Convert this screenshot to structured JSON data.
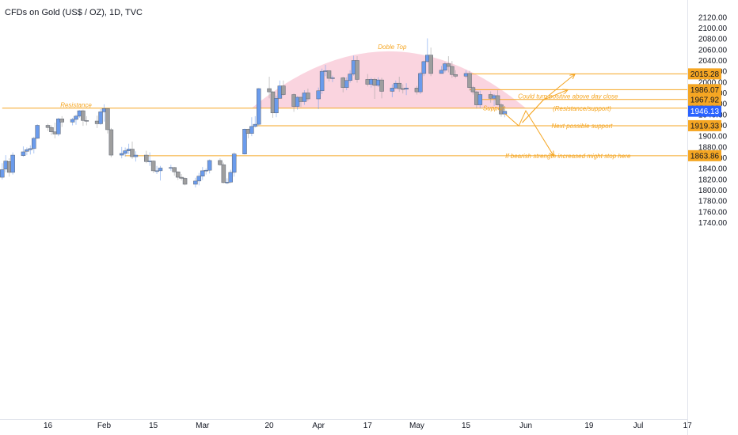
{
  "chart_data": {
    "type": "candlestick",
    "title": "CFDs on Gold (US$ / OZ), 1D, TVC",
    "y_axis": {
      "min": 1740,
      "max": 2120,
      "ticks": [
        1740,
        1760,
        1780,
        1800,
        1820,
        1840,
        1860,
        1880,
        1900,
        1920,
        1940,
        1960,
        1980,
        2000,
        2020,
        2040,
        2060,
        2080,
        2100,
        2120
      ],
      "tick_labels": [
        "1740.00",
        "1760.00",
        "1780.00",
        "1800.00",
        "1820.00",
        "1840.00",
        "1860.00",
        "1880.00",
        "1900.00",
        "1920.00",
        "1940.00",
        "1960.00",
        "1980.00",
        "2000.00",
        "2020.00",
        "2040.00",
        "2060.00",
        "2080.00",
        "2100.00",
        "2120.00"
      ]
    },
    "x_axis": {
      "labels": [
        {
          "label": "16",
          "date": "2023-01-16"
        },
        {
          "label": "Feb",
          "date": "2023-02-01"
        },
        {
          "label": "15",
          "date": "2023-02-15"
        },
        {
          "label": "Mar",
          "date": "2023-03-01"
        },
        {
          "label": "20",
          "date": "2023-03-20"
        },
        {
          "label": "Apr",
          "date": "2023-04-03"
        },
        {
          "label": "17",
          "date": "2023-04-17"
        },
        {
          "label": "May",
          "date": "2023-05-01"
        },
        {
          "label": "15",
          "date": "2023-05-15"
        },
        {
          "label": "Jun",
          "date": "2023-06-01"
        },
        {
          "label": "19",
          "date": "2023-06-19"
        },
        {
          "label": "Jul",
          "date": "2023-07-03"
        },
        {
          "label": "17",
          "date": "2023-07-17"
        }
      ]
    },
    "candles": [
      {
        "date": "2023-01-03",
        "o": 1824,
        "h": 1850,
        "l": 1820,
        "c": 1838
      },
      {
        "date": "2023-01-04",
        "o": 1839,
        "h": 1865,
        "l": 1833,
        "c": 1854
      },
      {
        "date": "2023-01-05",
        "o": 1853,
        "h": 1859,
        "l": 1825,
        "c": 1833
      },
      {
        "date": "2023-01-06",
        "o": 1833,
        "h": 1870,
        "l": 1829,
        "c": 1865
      },
      {
        "date": "2023-01-09",
        "o": 1864,
        "h": 1881,
        "l": 1862,
        "c": 1871
      },
      {
        "date": "2023-01-10",
        "o": 1872,
        "h": 1879,
        "l": 1865,
        "c": 1875
      },
      {
        "date": "2023-01-11",
        "o": 1875,
        "h": 1883,
        "l": 1866,
        "c": 1877
      },
      {
        "date": "2023-01-12",
        "o": 1877,
        "h": 1899,
        "l": 1868,
        "c": 1896
      },
      {
        "date": "2023-01-13",
        "o": 1896,
        "h": 1922,
        "l": 1895,
        "c": 1920
      },
      {
        "date": "2023-01-16",
        "o": 1920,
        "h": 1923,
        "l": 1910,
        "c": 1916
      },
      {
        "date": "2023-01-17",
        "o": 1916,
        "h": 1920,
        "l": 1902,
        "c": 1908
      },
      {
        "date": "2023-01-18",
        "o": 1908,
        "h": 1925,
        "l": 1896,
        "c": 1904
      },
      {
        "date": "2023-01-19",
        "o": 1904,
        "h": 1934,
        "l": 1900,
        "c": 1932
      },
      {
        "date": "2023-01-20",
        "o": 1932,
        "h": 1937,
        "l": 1917,
        "c": 1926
      },
      {
        "date": "2023-01-23",
        "o": 1926,
        "h": 1934,
        "l": 1920,
        "c": 1931
      },
      {
        "date": "2023-01-24",
        "o": 1931,
        "h": 1940,
        "l": 1921,
        "c": 1937
      },
      {
        "date": "2023-01-25",
        "o": 1937,
        "h": 1948,
        "l": 1934,
        "c": 1947
      },
      {
        "date": "2023-01-26",
        "o": 1947,
        "h": 1949,
        "l": 1919,
        "c": 1929
      },
      {
        "date": "2023-01-27",
        "o": 1929,
        "h": 1937,
        "l": 1920,
        "c": 1928
      },
      {
        "date": "2023-01-30",
        "o": 1928,
        "h": 1938,
        "l": 1915,
        "c": 1923
      },
      {
        "date": "2023-01-31",
        "o": 1923,
        "h": 1950,
        "l": 1921,
        "c": 1945
      },
      {
        "date": "2023-02-01",
        "o": 1945,
        "h": 1959,
        "l": 1927,
        "c": 1951
      },
      {
        "date": "2023-02-02",
        "o": 1951,
        "h": 1951,
        "l": 1905,
        "c": 1912
      },
      {
        "date": "2023-02-03",
        "o": 1912,
        "h": 1915,
        "l": 1861,
        "c": 1865
      },
      {
        "date": "2023-02-06",
        "o": 1865,
        "h": 1880,
        "l": 1859,
        "c": 1868
      },
      {
        "date": "2023-02-07",
        "o": 1868,
        "h": 1879,
        "l": 1862,
        "c": 1873
      },
      {
        "date": "2023-02-08",
        "o": 1873,
        "h": 1886,
        "l": 1867,
        "c": 1876
      },
      {
        "date": "2023-02-09",
        "o": 1876,
        "h": 1890,
        "l": 1858,
        "c": 1862
      },
      {
        "date": "2023-02-10",
        "o": 1862,
        "h": 1872,
        "l": 1853,
        "c": 1865
      },
      {
        "date": "2023-02-13",
        "o": 1865,
        "h": 1873,
        "l": 1850,
        "c": 1853
      },
      {
        "date": "2023-02-14",
        "o": 1853,
        "h": 1870,
        "l": 1845,
        "c": 1854
      },
      {
        "date": "2023-02-15",
        "o": 1854,
        "h": 1855,
        "l": 1832,
        "c": 1836
      },
      {
        "date": "2023-02-16",
        "o": 1836,
        "h": 1845,
        "l": 1830,
        "c": 1836
      },
      {
        "date": "2023-02-17",
        "o": 1836,
        "h": 1845,
        "l": 1818,
        "c": 1841
      },
      {
        "date": "2023-02-20",
        "o": 1841,
        "h": 1847,
        "l": 1836,
        "c": 1842
      },
      {
        "date": "2023-02-21",
        "o": 1842,
        "h": 1843,
        "l": 1827,
        "c": 1834
      },
      {
        "date": "2023-02-22",
        "o": 1834,
        "h": 1835,
        "l": 1819,
        "c": 1824
      },
      {
        "date": "2023-02-23",
        "o": 1824,
        "h": 1830,
        "l": 1818,
        "c": 1822
      },
      {
        "date": "2023-02-24",
        "o": 1822,
        "h": 1824,
        "l": 1809,
        "c": 1811
      },
      {
        "date": "2023-02-27",
        "o": 1811,
        "h": 1823,
        "l": 1805,
        "c": 1817
      },
      {
        "date": "2023-02-28",
        "o": 1817,
        "h": 1832,
        "l": 1809,
        "c": 1826
      },
      {
        "date": "2023-03-01",
        "o": 1826,
        "h": 1843,
        "l": 1819,
        "c": 1836
      },
      {
        "date": "2023-03-02",
        "o": 1836,
        "h": 1840,
        "l": 1829,
        "c": 1837
      },
      {
        "date": "2023-03-03",
        "o": 1837,
        "h": 1857,
        "l": 1831,
        "c": 1855
      },
      {
        "date": "2023-03-06",
        "o": 1855,
        "h": 1859,
        "l": 1845,
        "c": 1847
      },
      {
        "date": "2023-03-07",
        "o": 1847,
        "h": 1851,
        "l": 1813,
        "c": 1814
      },
      {
        "date": "2023-03-08",
        "o": 1814,
        "h": 1822,
        "l": 1811,
        "c": 1815
      },
      {
        "date": "2023-03-09",
        "o": 1815,
        "h": 1838,
        "l": 1813,
        "c": 1833
      },
      {
        "date": "2023-03-10",
        "o": 1833,
        "h": 1870,
        "l": 1825,
        "c": 1867
      },
      {
        "date": "2023-03-13",
        "o": 1867,
        "h": 1914,
        "l": 1866,
        "c": 1913
      },
      {
        "date": "2023-03-14",
        "o": 1913,
        "h": 1914,
        "l": 1896,
        "c": 1905
      },
      {
        "date": "2023-03-15",
        "o": 1905,
        "h": 1935,
        "l": 1900,
        "c": 1918
      },
      {
        "date": "2023-03-16",
        "o": 1918,
        "h": 1937,
        "l": 1916,
        "c": 1922
      },
      {
        "date": "2023-03-17",
        "o": 1922,
        "h": 1989,
        "l": 1919,
        "c": 1988
      },
      {
        "date": "2023-03-20",
        "o": 1988,
        "h": 2010,
        "l": 1970,
        "c": 1982
      },
      {
        "date": "2023-03-21",
        "o": 1982,
        "h": 1984,
        "l": 1934,
        "c": 1943
      },
      {
        "date": "2023-03-22",
        "o": 1943,
        "h": 1975,
        "l": 1935,
        "c": 1970
      },
      {
        "date": "2023-03-23",
        "o": 1970,
        "h": 2003,
        "l": 1969,
        "c": 1993
      },
      {
        "date": "2023-03-24",
        "o": 1993,
        "h": 2003,
        "l": 1975,
        "c": 1977
      },
      {
        "date": "2023-03-27",
        "o": 1977,
        "h": 1979,
        "l": 1945,
        "c": 1955
      },
      {
        "date": "2023-03-28",
        "o": 1955,
        "h": 1974,
        "l": 1949,
        "c": 1972
      },
      {
        "date": "2023-03-29",
        "o": 1972,
        "h": 1973,
        "l": 1954,
        "c": 1964
      },
      {
        "date": "2023-03-30",
        "o": 1964,
        "h": 1985,
        "l": 1958,
        "c": 1980
      },
      {
        "date": "2023-03-31",
        "o": 1980,
        "h": 1988,
        "l": 1965,
        "c": 1969
      },
      {
        "date": "2023-04-03",
        "o": 1969,
        "h": 1990,
        "l": 1950,
        "c": 1984
      },
      {
        "date": "2023-04-04",
        "o": 1984,
        "h": 2025,
        "l": 1978,
        "c": 2020
      },
      {
        "date": "2023-04-05",
        "o": 2020,
        "h": 2032,
        "l": 2011,
        "c": 2021
      },
      {
        "date": "2023-04-06",
        "o": 2021,
        "h": 2022,
        "l": 2001,
        "c": 2007
      },
      {
        "date": "2023-04-07",
        "o": 2007,
        "h": 2012,
        "l": 2000,
        "c": 2008
      },
      {
        "date": "2023-04-10",
        "o": 2008,
        "h": 2010,
        "l": 1981,
        "c": 1990
      },
      {
        "date": "2023-04-11",
        "o": 1990,
        "h": 2009,
        "l": 1985,
        "c": 2003
      },
      {
        "date": "2023-04-12",
        "o": 2003,
        "h": 2022,
        "l": 1999,
        "c": 2015
      },
      {
        "date": "2023-04-13",
        "o": 2015,
        "h": 2049,
        "l": 2012,
        "c": 2040
      },
      {
        "date": "2023-04-14",
        "o": 2040,
        "h": 2048,
        "l": 1999,
        "c": 2005
      },
      {
        "date": "2023-04-17",
        "o": 2005,
        "h": 2015,
        "l": 1992,
        "c": 1996
      },
      {
        "date": "2023-04-18",
        "o": 1996,
        "h": 2008,
        "l": 1990,
        "c": 2005
      },
      {
        "date": "2023-04-19",
        "o": 2005,
        "h": 2008,
        "l": 1969,
        "c": 1994
      },
      {
        "date": "2023-04-20",
        "o": 1994,
        "h": 2009,
        "l": 1991,
        "c": 2004
      },
      {
        "date": "2023-04-21",
        "o": 2004,
        "h": 2008,
        "l": 1970,
        "c": 1983
      },
      {
        "date": "2023-04-24",
        "o": 1983,
        "h": 1996,
        "l": 1972,
        "c": 1989
      },
      {
        "date": "2023-04-25",
        "o": 1989,
        "h": 2003,
        "l": 1987,
        "c": 1998
      },
      {
        "date": "2023-04-26",
        "o": 1998,
        "h": 2010,
        "l": 1982,
        "c": 1988
      },
      {
        "date": "2023-04-27",
        "o": 1988,
        "h": 1996,
        "l": 1979,
        "c": 1987
      },
      {
        "date": "2023-04-28",
        "o": 1987,
        "h": 1998,
        "l": 1976,
        "c": 1989
      },
      {
        "date": "2023-05-01",
        "o": 1989,
        "h": 1993,
        "l": 1977,
        "c": 1982
      },
      {
        "date": "2023-05-02",
        "o": 1982,
        "h": 2019,
        "l": 1978,
        "c": 2016
      },
      {
        "date": "2023-05-03",
        "o": 2016,
        "h": 2040,
        "l": 2011,
        "c": 2038
      },
      {
        "date": "2023-05-04",
        "o": 2038,
        "h": 2081,
        "l": 2036,
        "c": 2050
      },
      {
        "date": "2023-05-05",
        "o": 2050,
        "h": 2064,
        "l": 2011,
        "c": 2016
      },
      {
        "date": "2023-05-08",
        "o": 2016,
        "h": 2030,
        "l": 2016,
        "c": 2022
      },
      {
        "date": "2023-05-09",
        "o": 2022,
        "h": 2037,
        "l": 2018,
        "c": 2034
      },
      {
        "date": "2023-05-10",
        "o": 2034,
        "h": 2048,
        "l": 2018,
        "c": 2029
      },
      {
        "date": "2023-05-11",
        "o": 2029,
        "h": 2039,
        "l": 2008,
        "c": 2014
      },
      {
        "date": "2023-05-12",
        "o": 2014,
        "h": 2022,
        "l": 2007,
        "c": 2011
      },
      {
        "date": "2023-05-15",
        "o": 2011,
        "h": 2022,
        "l": 2007,
        "c": 2016
      },
      {
        "date": "2023-05-16",
        "o": 2016,
        "h": 2021,
        "l": 1984,
        "c": 1990
      },
      {
        "date": "2023-05-17",
        "o": 1990,
        "h": 1993,
        "l": 1977,
        "c": 1982
      },
      {
        "date": "2023-05-18",
        "o": 1982,
        "h": 1984,
        "l": 1951,
        "c": 1958
      },
      {
        "date": "2023-05-19",
        "o": 1958,
        "h": 1984,
        "l": 1952,
        "c": 1977
      },
      {
        "date": "2023-05-22",
        "o": 1977,
        "h": 1983,
        "l": 1962,
        "c": 1970
      },
      {
        "date": "2023-05-23",
        "o": 1970,
        "h": 1978,
        "l": 1956,
        "c": 1975
      },
      {
        "date": "2023-05-24",
        "o": 1975,
        "h": 1985,
        "l": 1957,
        "c": 1958
      },
      {
        "date": "2023-05-25",
        "o": 1958,
        "h": 1961,
        "l": 1936,
        "c": 1941
      },
      {
        "date": "2023-05-26",
        "o": 1941,
        "h": 1956,
        "l": 1935,
        "c": 1946
      }
    ],
    "levels": [
      {
        "value": 2015.28,
        "label": "2015.28",
        "x_from": "2023-05-15"
      },
      {
        "value": 1986.07,
        "label": "1986.07",
        "x_from": "2023-05-16"
      },
      {
        "value": 1967.92,
        "label": "1967.92",
        "x_from": "2023-05-19"
      },
      {
        "value": 1951.8,
        "label": "1951.80",
        "x_from": "2023-01-03"
      },
      {
        "value": 1919.33,
        "label": "1919.33",
        "x_from": "2023-03-16"
      },
      {
        "value": 1863.86,
        "label": "1863.86",
        "x_from": "2023-02-07"
      }
    ],
    "current_price": {
      "value": 1946.13,
      "label": "1946.13"
    },
    "annotations": [
      {
        "text": "Doble Top",
        "date": "2023-04-24",
        "price": 2061
      },
      {
        "text": "Resistance",
        "date": "2023-01-24",
        "price": 1954
      },
      {
        "text": "Support",
        "date": "2023-05-23",
        "price": 1948
      },
      {
        "text": "Could turn positive above day close",
        "date": "2023-06-13",
        "price": 1970
      },
      {
        "text": "(Resistance/support)",
        "date": "2023-06-17",
        "price": 1947
      },
      {
        "text": "Next possible support",
        "date": "2023-06-17",
        "price": 1915
      },
      {
        "text": "If bearish strength increased might stop here",
        "date": "2023-06-13",
        "price": 1859
      }
    ],
    "dome": {
      "start_date": "2023-03-15",
      "end_date": "2023-06-01",
      "base_price": 1951.8,
      "peak_price": 2057
    },
    "arrows": [
      {
        "points": [
          [
            "2023-05-31",
            1925
          ],
          [
            "2023-06-06",
            1967
          ],
          [
            "2023-06-13",
            1986
          ]
        ]
      },
      {
        "points": [
          [
            "2023-05-31",
            1925
          ],
          [
            "2023-06-06",
            1967
          ],
          [
            "2023-06-15",
            2015
          ]
        ]
      },
      {
        "points": [
          [
            "2023-05-26",
            1942
          ],
          [
            "2023-05-30",
            1919
          ],
          [
            "2023-06-01",
            1947
          ],
          [
            "2023-06-09",
            1863
          ]
        ]
      }
    ],
    "colors": {
      "bull": "#6a9bec",
      "bear": "#9e9e9e",
      "level": "#f5a623",
      "dome": "#f8c6d4",
      "price_badge": "#2962ff",
      "grid": "#f0f3fa"
    }
  }
}
